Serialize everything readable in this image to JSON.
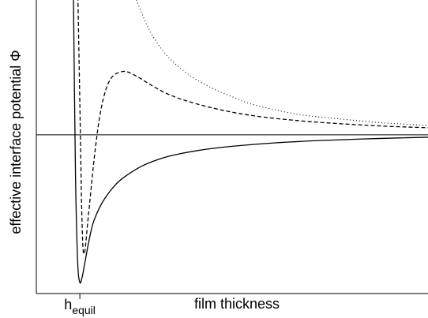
{
  "chart_data": {
    "type": "line",
    "title": "",
    "xlabel": "film thickness",
    "ylabel": "effective interface potential Φ",
    "x_tick_labels": [
      {
        "main": "h",
        "sub": "equil",
        "x": 1
      }
    ],
    "x_range": [
      0,
      9
    ],
    "y_range": [
      -1.0,
      0.85
    ],
    "grid": false,
    "legend": "none",
    "reference_line": {
      "y": 0
    },
    "series": [
      {
        "style": "solid",
        "x": [
          0.85,
          0.9,
          0.95,
          1.0,
          1.05,
          1.1,
          1.2,
          1.3,
          1.45,
          1.6,
          1.8,
          2.0,
          2.4,
          2.8,
          3.2,
          3.8,
          4.5,
          5.5,
          6.5,
          7.5,
          8.5,
          9.0
        ],
        "y": [
          0.95,
          -0.25,
          -0.8,
          -0.93,
          -0.9,
          -0.83,
          -0.68,
          -0.56,
          -0.46,
          -0.39,
          -0.32,
          -0.27,
          -0.2,
          -0.155,
          -0.125,
          -0.095,
          -0.072,
          -0.05,
          -0.036,
          -0.026,
          -0.018,
          -0.015
        ]
      },
      {
        "style": "dashed",
        "x": [
          0.95,
          1.0,
          1.05,
          1.1,
          1.2,
          1.35,
          1.5,
          1.7,
          2.0,
          2.3,
          2.6,
          3.0,
          3.5,
          4.2,
          5.0,
          6.0,
          7.0,
          8.0,
          9.0
        ],
        "y": [
          0.95,
          0.2,
          -0.55,
          -0.75,
          -0.5,
          -0.1,
          0.18,
          0.35,
          0.4,
          0.37,
          0.32,
          0.26,
          0.21,
          0.16,
          0.12,
          0.09,
          0.07,
          0.055,
          0.045
        ]
      },
      {
        "style": "dotted",
        "x": [
          2.3,
          2.6,
          3.0,
          3.5,
          4.0,
          4.5,
          5.0,
          6.0,
          7.0,
          8.0,
          9.0
        ],
        "y": [
          0.85,
          0.66,
          0.5,
          0.38,
          0.3,
          0.24,
          0.19,
          0.13,
          0.1,
          0.075,
          0.06
        ]
      }
    ]
  }
}
